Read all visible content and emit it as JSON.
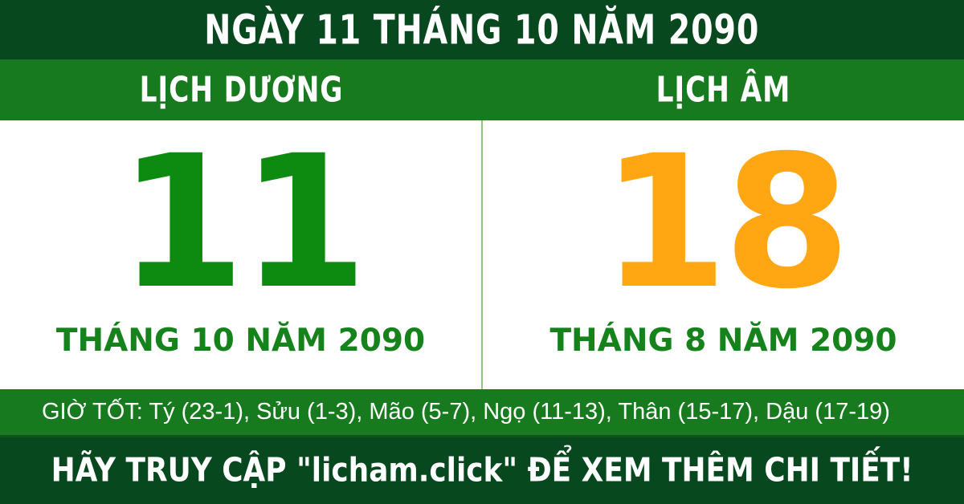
{
  "header": {
    "title": "NGÀY 11 THÁNG 10 NĂM 2090"
  },
  "calendar_headers": {
    "solar_label": "LỊCH DƯƠNG",
    "lunar_label": "LỊCH ÂM"
  },
  "solar": {
    "day": "11",
    "month_year": "THÁNG 10 NĂM 2090"
  },
  "lunar": {
    "day": "18",
    "month_year": "THÁNG 8 NĂM 2090"
  },
  "good_hours": {
    "full_text": "GIỜ TỐT: Tý (23-1), Sửu (1-3), Mão (5-7), Ngọ (11-13), Thân (15-17), Dậu (17-19)"
  },
  "footer": {
    "message": "HÃY TRUY CẬP \"licham.click\" ĐỂ XEM THÊM CHI TIẾT!"
  },
  "colors": {
    "dark_green_bar": "#07481f",
    "bright_green_bar": "#187a1e",
    "solar_day": "#0d8a10",
    "lunar_day": "#ffa713",
    "month_text": "#15821c",
    "divider": "#8cc97c",
    "text_on_green": "#ffffff"
  }
}
